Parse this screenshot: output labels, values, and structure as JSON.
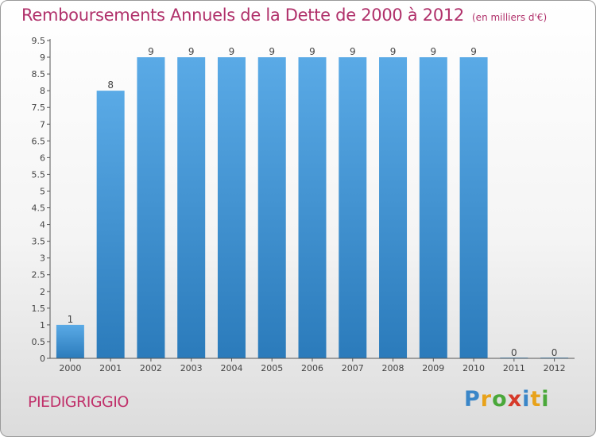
{
  "title": "Remboursements Annuels de la Dette de 2000 à 2012",
  "unit_note": "(en milliers d'€)",
  "commune": "PIEDIGRIGGIO",
  "logo": {
    "letters": [
      "P",
      "r",
      "o",
      "x",
      "i",
      "t",
      "i"
    ],
    "colors": [
      "#3a86c8",
      "#e8a21a",
      "#4aa83a",
      "#d63a2a",
      "#3a86c8",
      "#e8a21a",
      "#4aa83a"
    ]
  },
  "colors": {
    "bar": "#4a9ede",
    "bar_dark": "#2f7fc0",
    "title": "#b0306a",
    "axis": "#555555"
  },
  "chart_data": {
    "type": "bar",
    "categories": [
      "2000",
      "2001",
      "2002",
      "2003",
      "2004",
      "2005",
      "2006",
      "2007",
      "2008",
      "2009",
      "2010",
      "2011",
      "2012"
    ],
    "values": [
      1,
      8,
      9,
      9,
      9,
      9,
      9,
      9,
      9,
      9,
      9,
      0,
      0
    ],
    "data_labels": [
      "1",
      "8",
      "9",
      "9",
      "9",
      "9",
      "9",
      "9",
      "9",
      "9",
      "9",
      "0",
      "0"
    ],
    "yticks": [
      "0",
      "0.5",
      "1",
      "1.5",
      "2",
      "2.5",
      "3",
      "3.5",
      "4",
      "4.5",
      "5",
      "5.5",
      "6",
      "6.5",
      "7",
      "7.5",
      "8",
      "8.5",
      "9",
      "9.5"
    ],
    "ylim": [
      0,
      9.5
    ],
    "grid": false,
    "xlabel": "",
    "ylabel": ""
  }
}
